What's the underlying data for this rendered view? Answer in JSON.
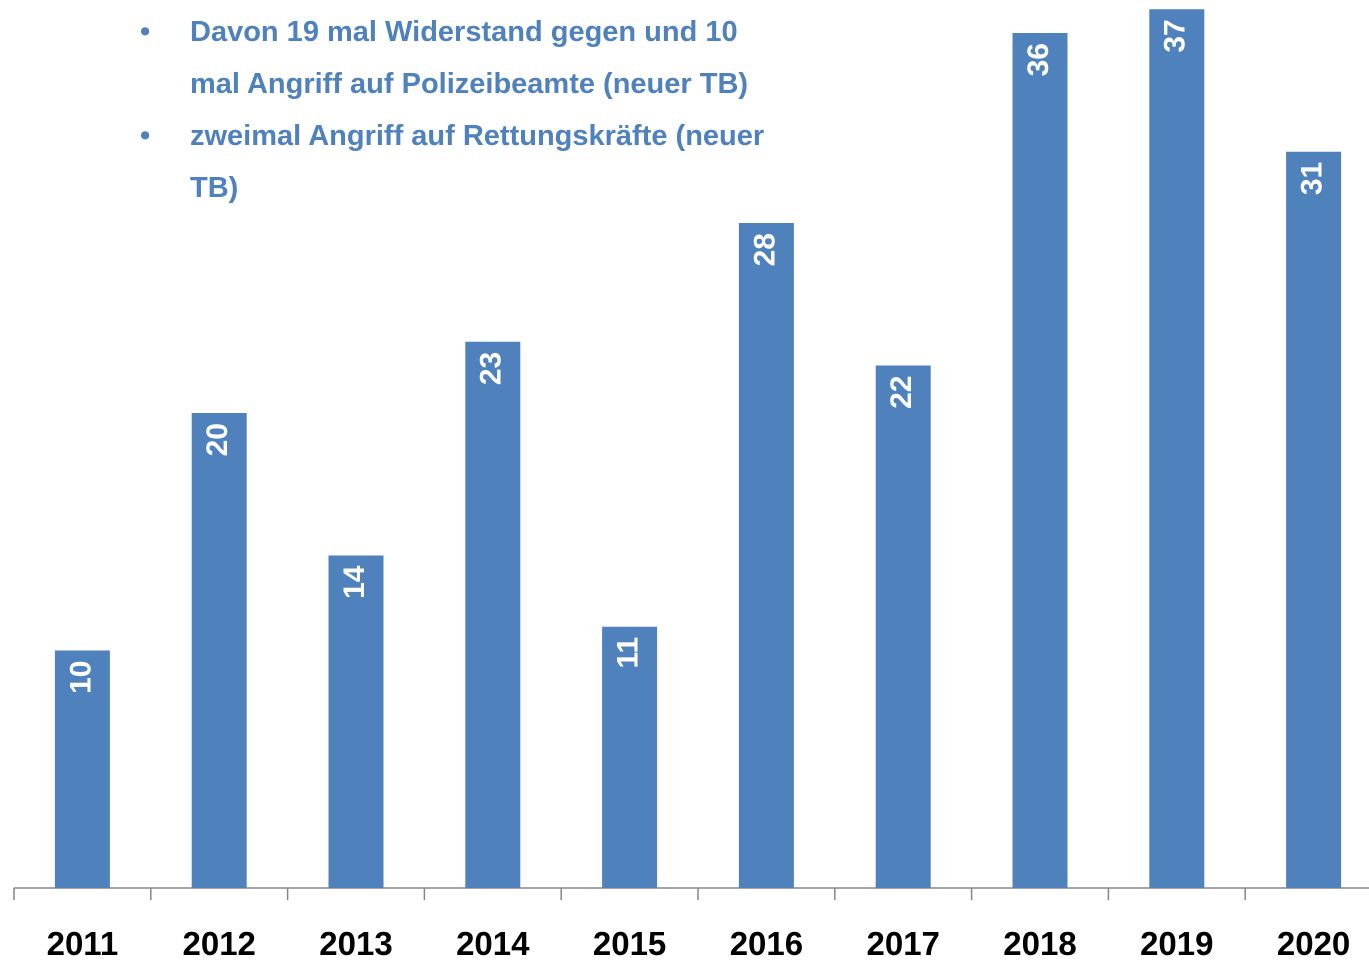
{
  "chart_data": {
    "type": "bar",
    "annotations": [
      "Davon 19 mal Widerstand gegen und 10 mal Angriff auf Polizeibeamte (neuer TB)",
      "zweimal Angriff auf Rettungskräfte (neuer TB)"
    ],
    "categories": [
      "2011",
      "2012",
      "2013",
      "2014",
      "2015",
      "2016",
      "2017",
      "2018",
      "2019",
      "2020"
    ],
    "values": [
      10,
      20,
      14,
      23,
      11,
      28,
      22,
      36,
      37,
      31
    ],
    "color": "#4f81bd"
  }
}
